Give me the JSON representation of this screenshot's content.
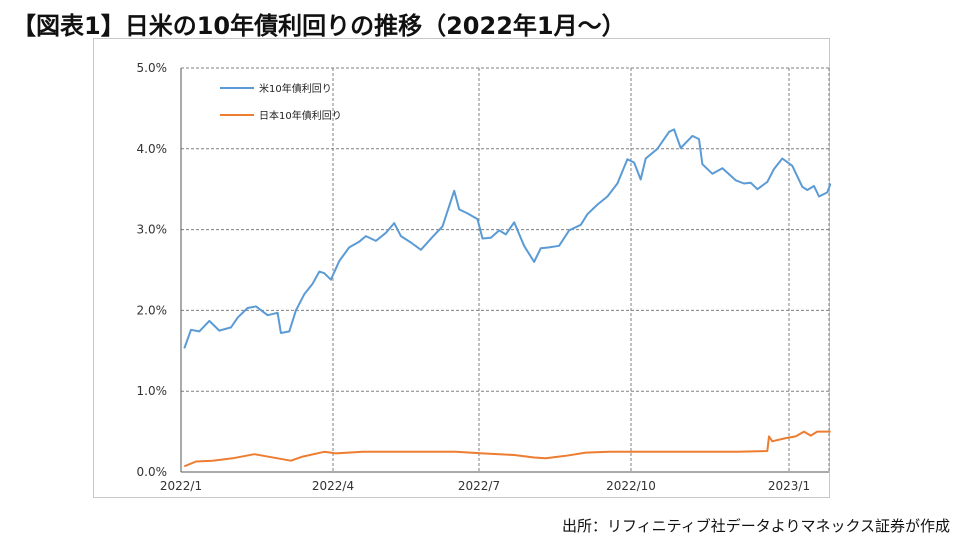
{
  "title": "【図表1】日米の10年債利回りの推移（2022年1月～）",
  "source": "出所：リフィニティブ社データよりマネックス証券が作成",
  "colors": {
    "us": "#5b9bd5",
    "jp": "#ed7d31",
    "grid": "#808080"
  },
  "chart_data": {
    "type": "line",
    "title": "",
    "xlabel": "",
    "ylabel": "",
    "ylim": [
      0,
      5
    ],
    "yticks": [
      "0.0%",
      "1.0%",
      "2.0%",
      "3.0%",
      "4.0%",
      "5.0%"
    ],
    "xticks": [
      "2022/1",
      "2022/4",
      "2022/7",
      "2022/10",
      "2023/1"
    ],
    "grid": true,
    "legend_position": "top-left",
    "series": [
      {
        "name": "米10年債利回り",
        "color": "#5b9bd5",
        "points": [
          [
            "2022-01-03",
            1.53
          ],
          [
            "2022-01-07",
            1.76
          ],
          [
            "2022-01-12",
            1.74
          ],
          [
            "2022-01-18",
            1.87
          ],
          [
            "2022-01-24",
            1.75
          ],
          [
            "2022-01-31",
            1.79
          ],
          [
            "2022-02-04",
            1.91
          ],
          [
            "2022-02-10",
            2.03
          ],
          [
            "2022-02-15",
            2.05
          ],
          [
            "2022-02-22",
            1.94
          ],
          [
            "2022-02-28",
            1.97
          ],
          [
            "2022-03-02",
            1.72
          ],
          [
            "2022-03-07",
            1.74
          ],
          [
            "2022-03-11",
            2.0
          ],
          [
            "2022-03-16",
            2.2
          ],
          [
            "2022-03-21",
            2.33
          ],
          [
            "2022-03-25",
            2.48
          ],
          [
            "2022-03-28",
            2.46
          ],
          [
            "2022-04-01",
            2.38
          ],
          [
            "2022-04-06",
            2.61
          ],
          [
            "2022-04-12",
            2.78
          ],
          [
            "2022-04-18",
            2.85
          ],
          [
            "2022-04-22",
            2.92
          ],
          [
            "2022-04-28",
            2.86
          ],
          [
            "2022-05-04",
            2.96
          ],
          [
            "2022-05-09",
            3.08
          ],
          [
            "2022-05-13",
            2.92
          ],
          [
            "2022-05-19",
            2.84
          ],
          [
            "2022-05-25",
            2.75
          ],
          [
            "2022-06-01",
            2.91
          ],
          [
            "2022-06-07",
            3.04
          ],
          [
            "2022-06-14",
            3.48
          ],
          [
            "2022-06-17",
            3.25
          ],
          [
            "2022-06-22",
            3.2
          ],
          [
            "2022-06-28",
            3.13
          ],
          [
            "2022-07-01",
            2.89
          ],
          [
            "2022-07-06",
            2.9
          ],
          [
            "2022-07-11",
            2.99
          ],
          [
            "2022-07-15",
            2.94
          ],
          [
            "2022-07-20",
            3.09
          ],
          [
            "2022-07-26",
            2.8
          ],
          [
            "2022-08-01",
            2.6
          ],
          [
            "2022-08-05",
            2.77
          ],
          [
            "2022-08-10",
            2.78
          ],
          [
            "2022-08-16",
            2.8
          ],
          [
            "2022-08-22",
            2.99
          ],
          [
            "2022-08-29",
            3.06
          ],
          [
            "2022-09-02",
            3.19
          ],
          [
            "2022-09-08",
            3.31
          ],
          [
            "2022-09-14",
            3.41
          ],
          [
            "2022-09-20",
            3.57
          ],
          [
            "2022-09-26",
            3.87
          ],
          [
            "2022-09-30",
            3.83
          ],
          [
            "2022-10-04",
            3.62
          ],
          [
            "2022-10-07",
            3.88
          ],
          [
            "2022-10-14",
            4.0
          ],
          [
            "2022-10-21",
            4.21
          ],
          [
            "2022-10-24",
            4.24
          ],
          [
            "2022-10-28",
            4.01
          ],
          [
            "2022-11-04",
            4.16
          ],
          [
            "2022-11-08",
            4.12
          ],
          [
            "2022-11-10",
            3.81
          ],
          [
            "2022-11-16",
            3.69
          ],
          [
            "2022-11-22",
            3.76
          ],
          [
            "2022-11-30",
            3.61
          ],
          [
            "2022-12-05",
            3.57
          ],
          [
            "2022-12-09",
            3.58
          ],
          [
            "2022-12-13",
            3.5
          ],
          [
            "2022-12-19",
            3.59
          ],
          [
            "2022-12-23",
            3.75
          ],
          [
            "2022-12-28",
            3.88
          ],
          [
            "2023-01-03",
            3.79
          ],
          [
            "2023-01-09",
            3.53
          ],
          [
            "2023-01-12",
            3.49
          ],
          [
            "2023-01-16",
            3.54
          ],
          [
            "2023-01-19",
            3.41
          ],
          [
            "2023-01-24",
            3.46
          ],
          [
            "2023-01-26",
            3.57
          ]
        ]
      },
      {
        "name": "日本10年債利回り",
        "color": "#ed7d31",
        "points": [
          [
            "2022-01-03",
            0.07
          ],
          [
            "2022-01-10",
            0.13
          ],
          [
            "2022-01-20",
            0.14
          ],
          [
            "2022-02-01",
            0.17
          ],
          [
            "2022-02-14",
            0.22
          ],
          [
            "2022-02-28",
            0.17
          ],
          [
            "2022-03-08",
            0.14
          ],
          [
            "2022-03-15",
            0.19
          ],
          [
            "2022-03-28",
            0.25
          ],
          [
            "2022-04-04",
            0.23
          ],
          [
            "2022-04-20",
            0.25
          ],
          [
            "2022-05-10",
            0.25
          ],
          [
            "2022-06-01",
            0.25
          ],
          [
            "2022-06-15",
            0.25
          ],
          [
            "2022-07-01",
            0.23
          ],
          [
            "2022-07-20",
            0.21
          ],
          [
            "2022-08-01",
            0.18
          ],
          [
            "2022-08-08",
            0.17
          ],
          [
            "2022-08-20",
            0.2
          ],
          [
            "2022-09-01",
            0.24
          ],
          [
            "2022-09-15",
            0.25
          ],
          [
            "2022-10-01",
            0.25
          ],
          [
            "2022-11-01",
            0.25
          ],
          [
            "2022-12-01",
            0.25
          ],
          [
            "2022-12-19",
            0.26
          ],
          [
            "2022-12-20",
            0.44
          ],
          [
            "2022-12-22",
            0.38
          ],
          [
            "2022-12-30",
            0.42
          ],
          [
            "2023-01-05",
            0.44
          ],
          [
            "2023-01-10",
            0.5
          ],
          [
            "2023-01-14",
            0.45
          ],
          [
            "2023-01-18",
            0.5
          ],
          [
            "2023-01-26",
            0.5
          ]
        ]
      }
    ]
  }
}
